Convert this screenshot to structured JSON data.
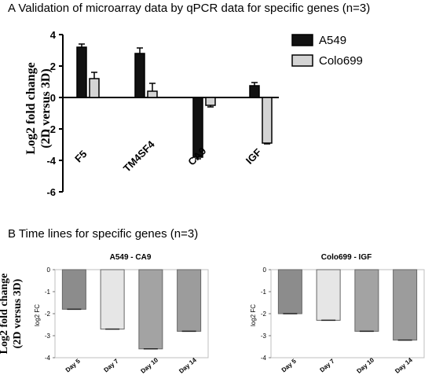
{
  "panel_a": {
    "title": "A   Validation of microarray data by qPCR data for specific genes (n=3)",
    "ylabel_line1": "Log2 fold change",
    "ylabel_line2": "(2D versus 3D)"
  },
  "panel_b": {
    "title": "B   Time lines for specific genes (n=3)",
    "ylabel_line1": "Log2 fold change",
    "ylabel_line2": "(2D versus 3D)"
  },
  "chart_data": [
    {
      "type": "bar",
      "categories": [
        "F5",
        "TM4SF4",
        "CA9",
        "IGF"
      ],
      "series": [
        {
          "name": "A549",
          "color": "#111111",
          "values": [
            3.2,
            2.8,
            -3.8,
            0.75
          ],
          "errors": [
            0.2,
            0.35,
            0.1,
            0.2
          ]
        },
        {
          "name": "Colo699",
          "color": "#d4d4d4",
          "values": [
            1.2,
            0.4,
            -0.5,
            -2.9
          ],
          "errors": [
            0.4,
            0.5,
            0.1,
            0.05
          ]
        }
      ],
      "ylim": [
        -6,
        4
      ],
      "yticks": [
        4,
        2,
        0,
        -2,
        -4,
        -6
      ],
      "legend": "top-right"
    },
    {
      "type": "bar",
      "title": "A549 - CA9",
      "ylabel": "log2 FC",
      "categories": [
        "Day 5",
        "Day 7",
        "Day 10",
        "Day 14"
      ],
      "values": [
        -1.8,
        -2.7,
        -3.6,
        -2.8
      ],
      "colors": [
        "#8c8c8c",
        "#e6e6e6",
        "#a3a3a3",
        "#9c9c9c"
      ],
      "ylim": [
        -4,
        0
      ],
      "yticks": [
        0,
        -1,
        -2,
        -3,
        -4
      ]
    },
    {
      "type": "bar",
      "title": "Colo699 - IGF",
      "ylabel": "log2 FC",
      "categories": [
        "Day 5",
        "Day 7",
        "Day 10",
        "Day 14"
      ],
      "values": [
        -2.0,
        -2.3,
        -2.8,
        -3.2
      ],
      "colors": [
        "#8c8c8c",
        "#e6e6e6",
        "#a3a3a3",
        "#9c9c9c"
      ],
      "ylim": [
        -4,
        0
      ],
      "yticks": [
        0,
        -1,
        -2,
        -3,
        -4
      ]
    }
  ]
}
